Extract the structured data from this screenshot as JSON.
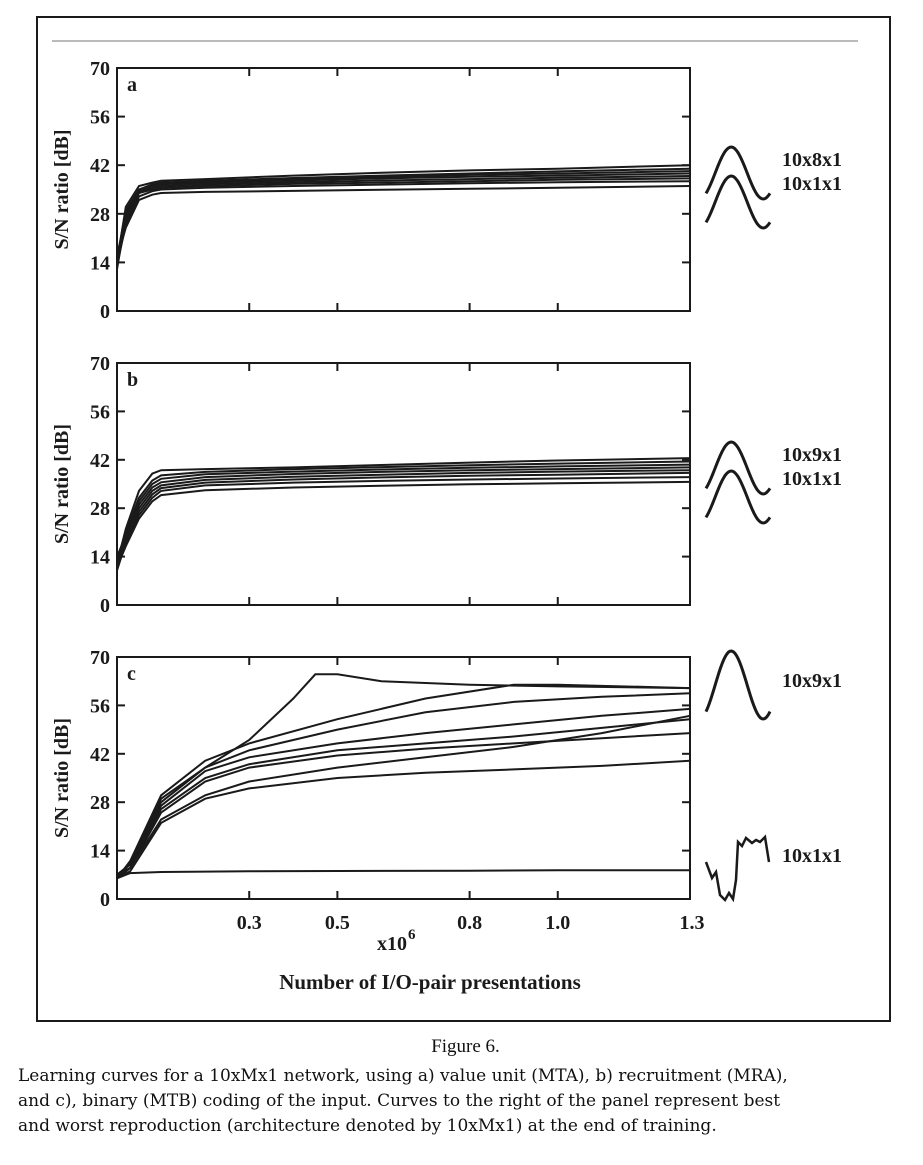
{
  "chart_data": [
    {
      "type": "line",
      "panel_label": "a",
      "ylabel": "S/N ratio [dB]",
      "ylim": [
        0,
        70
      ],
      "yticks": [
        0,
        14,
        28,
        42,
        56,
        70
      ],
      "xlim": [
        0,
        1.3
      ],
      "xticks": [
        0.3,
        0.5,
        0.8,
        1.0,
        1.3
      ],
      "series": [
        {
          "x": [
            0,
            0.02,
            0.05,
            0.08,
            0.1,
            0.2,
            0.4,
            0.6,
            0.8,
            1.0,
            1.3
          ],
          "y": [
            14,
            30,
            36,
            37,
            37.5,
            38,
            39,
            39.8,
            40.5,
            41,
            42
          ]
        },
        {
          "x": [
            0,
            0.02,
            0.05,
            0.08,
            0.1,
            0.2,
            0.4,
            0.6,
            0.8,
            1.0,
            1.3
          ],
          "y": [
            15,
            29,
            35,
            36.5,
            37,
            37.5,
            38.3,
            39,
            39.6,
            40.2,
            41
          ]
        },
        {
          "x": [
            0,
            0.02,
            0.05,
            0.08,
            0.1,
            0.2,
            0.4,
            0.6,
            0.8,
            1.0,
            1.3
          ],
          "y": [
            13,
            28,
            35,
            36,
            36.6,
            37.2,
            38,
            38.6,
            39.2,
            39.6,
            40.3
          ]
        },
        {
          "x": [
            0,
            0.02,
            0.05,
            0.08,
            0.1,
            0.2,
            0.4,
            0.6,
            0.8,
            1.0,
            1.3
          ],
          "y": [
            16,
            27,
            34.5,
            36,
            36.5,
            37,
            37.6,
            38.2,
            38.7,
            39,
            39.6
          ]
        },
        {
          "x": [
            0,
            0.02,
            0.05,
            0.08,
            0.1,
            0.2,
            0.4,
            0.6,
            0.8,
            1.0,
            1.3
          ],
          "y": [
            14,
            26,
            34,
            35.5,
            36,
            36.5,
            37.1,
            37.6,
            38,
            38.4,
            38.9
          ]
        },
        {
          "x": [
            0,
            0.02,
            0.05,
            0.08,
            0.1,
            0.2,
            0.4,
            0.6,
            0.8,
            1.0,
            1.3
          ],
          "y": [
            12,
            27,
            34,
            35,
            35.5,
            36,
            36.6,
            37,
            37.4,
            37.8,
            38.2
          ]
        },
        {
          "x": [
            0,
            0.02,
            0.05,
            0.08,
            0.1,
            0.2,
            0.4,
            0.6,
            0.8,
            1.0,
            1.3
          ],
          "y": [
            13,
            25,
            33,
            34.5,
            35,
            35.5,
            36,
            36.4,
            36.8,
            37.1,
            37.4
          ]
        },
        {
          "x": [
            0,
            0.02,
            0.05,
            0.08,
            0.1,
            0.2,
            0.4,
            0.6,
            0.8,
            1.0,
            1.3
          ],
          "y": [
            15,
            24,
            32,
            33.5,
            34,
            34.3,
            34.6,
            34.9,
            35.2,
            35.5,
            36
          ]
        }
      ],
      "best_label": "10x8x1",
      "worst_label": "10x1x1"
    },
    {
      "type": "line",
      "panel_label": "b",
      "ylabel": "S/N ratio [dB]",
      "ylim": [
        0,
        70
      ],
      "yticks": [
        0,
        14,
        28,
        42,
        56,
        70
      ],
      "xlim": [
        0,
        1.3
      ],
      "xticks": [
        0.3,
        0.5,
        0.8,
        1.0,
        1.3
      ],
      "series": [
        {
          "x": [
            0,
            0.02,
            0.05,
            0.08,
            0.1,
            0.2,
            0.4,
            0.6,
            0.8,
            1.0,
            1.3
          ],
          "y": [
            12,
            22,
            33,
            38,
            39,
            39.3,
            39.8,
            40.5,
            41.2,
            41.8,
            42.5
          ]
        },
        {
          "x": [
            0,
            0.02,
            0.05,
            0.08,
            0.1,
            0.2,
            0.4,
            0.6,
            0.8,
            1.0,
            1.3
          ],
          "y": [
            13,
            21,
            31,
            36,
            37.5,
            38.5,
            39.3,
            39.9,
            40.4,
            40.9,
            41.5
          ]
        },
        {
          "x": [
            0,
            0.02,
            0.05,
            0.08,
            0.1,
            0.2,
            0.4,
            0.6,
            0.8,
            1.0,
            1.3
          ],
          "y": [
            11,
            20,
            30,
            35,
            36.5,
            37.8,
            38.6,
            39.2,
            39.7,
            40.1,
            40.6
          ]
        },
        {
          "x": [
            0,
            0.02,
            0.05,
            0.08,
            0.1,
            0.2,
            0.4,
            0.6,
            0.8,
            1.0,
            1.3
          ],
          "y": [
            14,
            20,
            29,
            34,
            35.5,
            37,
            37.9,
            38.5,
            39,
            39.3,
            39.8
          ]
        },
        {
          "x": [
            0,
            0.02,
            0.05,
            0.08,
            0.1,
            0.2,
            0.4,
            0.6,
            0.8,
            1.0,
            1.3
          ],
          "y": [
            12,
            19,
            28,
            33,
            34.6,
            36.2,
            37.1,
            37.7,
            38.2,
            38.6,
            39
          ]
        },
        {
          "x": [
            0,
            0.02,
            0.05,
            0.08,
            0.1,
            0.2,
            0.4,
            0.6,
            0.8,
            1.0,
            1.3
          ],
          "y": [
            10,
            18,
            27,
            32,
            33.8,
            35.4,
            36.3,
            36.9,
            37.4,
            37.7,
            38.2
          ]
        },
        {
          "x": [
            0,
            0.02,
            0.05,
            0.08,
            0.1,
            0.2,
            0.4,
            0.6,
            0.8,
            1.0,
            1.3
          ],
          "y": [
            13,
            18,
            26,
            31,
            33,
            34.6,
            35.4,
            35.9,
            36.3,
            36.6,
            37
          ]
        },
        {
          "x": [
            0,
            0.02,
            0.05,
            0.08,
            0.1,
            0.2,
            0.4,
            0.6,
            0.8,
            1.0,
            1.3
          ],
          "y": [
            11,
            17,
            25,
            30,
            31.8,
            33.2,
            34,
            34.5,
            34.9,
            35.2,
            35.6
          ]
        }
      ],
      "best_label": "10x9x1",
      "worst_label": "10x1x1"
    },
    {
      "type": "line",
      "panel_label": "c",
      "ylabel": "S/N ratio [dB]",
      "ylim": [
        0,
        70
      ],
      "yticks": [
        0,
        14,
        28,
        42,
        56,
        70
      ],
      "xlim": [
        0,
        1.3
      ],
      "xticks": [
        0.3,
        0.5,
        0.8,
        1.0,
        1.3
      ],
      "x_multiplier_label": "x10",
      "x_multiplier_exp": "6",
      "xlabel": "Number of I/O-pair presentations",
      "series": [
        {
          "x": [
            0,
            0.03,
            0.1,
            0.2,
            0.3,
            0.4,
            0.45,
            0.5,
            0.6,
            0.8,
            1.0,
            1.3
          ],
          "y": [
            7,
            10,
            28,
            38,
            46,
            58,
            65,
            65,
            63,
            62,
            61.5,
            61
          ]
        },
        {
          "x": [
            0,
            0.03,
            0.1,
            0.2,
            0.3,
            0.5,
            0.7,
            0.9,
            1.0,
            1.3
          ],
          "y": [
            6,
            11,
            30,
            40,
            45,
            52,
            58,
            62,
            62,
            61
          ]
        },
        {
          "x": [
            0,
            0.03,
            0.1,
            0.2,
            0.3,
            0.5,
            0.7,
            0.9,
            1.1,
            1.3
          ],
          "y": [
            7,
            10,
            29,
            38,
            43,
            49,
            54,
            57,
            58.5,
            59.5
          ]
        },
        {
          "x": [
            0,
            0.03,
            0.1,
            0.2,
            0.3,
            0.5,
            0.7,
            0.9,
            1.1,
            1.3
          ],
          "y": [
            6,
            9,
            27,
            37,
            41,
            45,
            48,
            50.5,
            53,
            55
          ]
        },
        {
          "x": [
            0,
            0.03,
            0.1,
            0.2,
            0.3,
            0.5,
            0.7,
            0.9,
            1.1,
            1.3
          ],
          "y": [
            7,
            10,
            26,
            35,
            39,
            43,
            45,
            47,
            49.5,
            52
          ]
        },
        {
          "x": [
            0,
            0.03,
            0.1,
            0.2,
            0.3,
            0.5,
            0.7,
            0.9,
            1.1,
            1.3
          ],
          "y": [
            6,
            9,
            25,
            34,
            38,
            41.5,
            43.5,
            45,
            46.5,
            48
          ]
        },
        {
          "x": [
            0,
            0.03,
            0.1,
            0.2,
            0.3,
            0.5,
            0.7,
            0.9,
            1.1,
            1.3
          ],
          "y": [
            7,
            9,
            23,
            30,
            34,
            38,
            41,
            44,
            48,
            53
          ]
        },
        {
          "x": [
            0,
            0.03,
            0.1,
            0.2,
            0.3,
            0.5,
            0.7,
            0.9,
            1.1,
            1.3
          ],
          "y": [
            6,
            8,
            22,
            29,
            32,
            35,
            36.5,
            37.5,
            38.5,
            40
          ]
        },
        {
          "x": [
            0,
            0.03,
            0.1,
            0.3,
            0.5,
            0.8,
            1.0,
            1.3
          ],
          "y": [
            6,
            7.5,
            7.8,
            8,
            8.1,
            8.2,
            8.3,
            8.3
          ]
        }
      ],
      "best_label": "10x9x1",
      "worst_label": "10x1x1"
    }
  ],
  "figure_label": "Figure 6.",
  "caption_lines": [
    "Learning curves for a 10xMx1 network, using a) value unit (MTA), b) recruitment (MRA),",
    "and c), binary (MTB) coding of the input. Curves to the right of the panel represent best",
    "and worst reproduction (architecture denoted by 10xMx1) at the end of training."
  ],
  "colors": {
    "ink": "#1a1a1a",
    "background": "#ffffff"
  }
}
